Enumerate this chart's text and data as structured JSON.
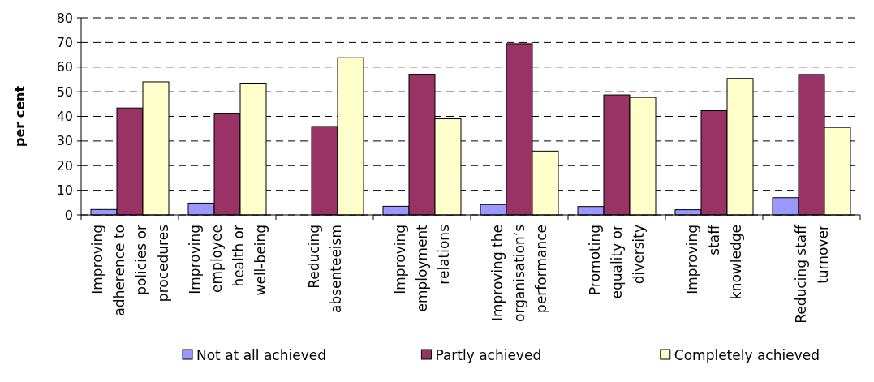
{
  "chart_data": {
    "type": "bar",
    "ylabel": "per cent",
    "categories": [
      "Improving\nadherence to\npolicies or\nprocedures",
      "Improving\nemployee\nhealth or\nwell-being",
      "Reducing\nabsenteeism",
      "Improving\nemployment\nrelations",
      "Improving the\norganisation’s\nperformance",
      "Promoting\nequality or\ndiversity",
      "Improving\nstaff\nknowledge",
      "Reducing staff\nturnover"
    ],
    "series": [
      {
        "name": "Not at all achieved",
        "color": "#9999ff",
        "values": [
          2.2,
          4.8,
          0,
          3.5,
          4.2,
          3.4,
          2.1,
          7.0
        ]
      },
      {
        "name": "Partly achieved",
        "color": "#993366",
        "values": [
          43.4,
          41.3,
          35.9,
          57.1,
          69.5,
          48.7,
          42.3,
          57.0
        ]
      },
      {
        "name": "Completely achieved",
        "color": "#ffffcc",
        "values": [
          54.0,
          53.5,
          63.8,
          39.0,
          25.9,
          47.7,
          55.4,
          35.5
        ]
      }
    ],
    "ylim": [
      0,
      80
    ],
    "yticks": [
      0,
      10,
      20,
      30,
      40,
      50,
      60,
      70,
      80
    ],
    "grid": "y",
    "legend": "bottom"
  }
}
